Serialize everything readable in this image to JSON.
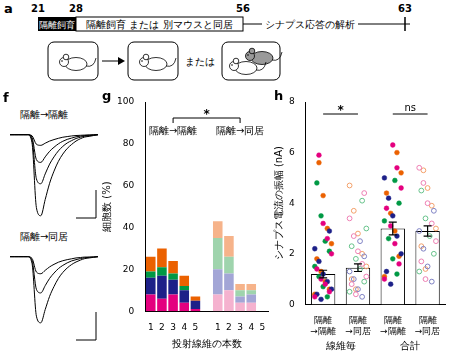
{
  "panel_labels": [
    "a",
    "f",
    "g",
    "h"
  ],
  "timeline": {
    "days": [
      21,
      28,
      56,
      63
    ],
    "isolation": "隔離飼育",
    "second_period": "隔離飼育 または 別マウスと同居",
    "analysis": "シナプス応答の解析",
    "or": "または"
  },
  "chart_data": [
    {
      "type": "line",
      "title": "隔離→隔離",
      "x": [
        0,
        1,
        2,
        3,
        4,
        5,
        6,
        7,
        8,
        9,
        10,
        11,
        12,
        13,
        14,
        15,
        16,
        17,
        18,
        19,
        20
      ],
      "xlim": [
        0,
        20
      ],
      "ylim": [
        -4,
        0.5
      ],
      "tick_labels": false,
      "grid": false,
      "series": [
        {
          "color": "#000000",
          "values": [
            0,
            0,
            0,
            0,
            0,
            -0.05,
            -0.45,
            -0.5,
            -0.4,
            -0.3,
            -0.23,
            -0.17,
            -0.12,
            -0.09,
            -0.06,
            -0.04,
            -0.03,
            -0.02,
            -0.01,
            -0.01,
            0
          ]
        },
        {
          "color": "#000000",
          "values": [
            0,
            0,
            0,
            0,
            0,
            -0.13,
            -1.17,
            -1.3,
            -1.04,
            -0.78,
            -0.59,
            -0.43,
            -0.31,
            -0.22,
            -0.16,
            -0.1,
            -0.07,
            -0.04,
            -0.03,
            -0.01,
            0
          ]
        },
        {
          "color": "#000000",
          "values": [
            0,
            0,
            0,
            0,
            0,
            -0.23,
            -2.07,
            -2.3,
            -1.84,
            -1.38,
            -1.04,
            -0.76,
            -0.55,
            -0.39,
            -0.28,
            -0.18,
            -0.12,
            -0.07,
            -0.05,
            -0.02,
            0
          ]
        },
        {
          "color": "#000000",
          "values": [
            0,
            0,
            0,
            0,
            0,
            -0.38,
            -3.42,
            -3.8,
            -3.04,
            -2.28,
            -1.71,
            -1.25,
            -0.91,
            -0.65,
            -0.46,
            -0.3,
            -0.19,
            -0.11,
            -0.08,
            -0.04,
            0
          ]
        }
      ]
    },
    {
      "type": "line",
      "title": "隔離→同居",
      "x": [
        0,
        1,
        2,
        3,
        4,
        5,
        6,
        7,
        8,
        9,
        10,
        11,
        12,
        13,
        14,
        15,
        16,
        17,
        18,
        19,
        20
      ],
      "xlim": [
        0,
        20
      ],
      "ylim": [
        -4,
        0.5
      ],
      "tick_labels": false,
      "grid": false,
      "series": [
        {
          "color": "#000000",
          "values": [
            0,
            0,
            0,
            0,
            0,
            -0.08,
            -0.72,
            -0.8,
            -0.64,
            -0.48,
            -0.36,
            -0.26,
            -0.19,
            -0.14,
            -0.1,
            -0.06,
            -0.04,
            -0.02,
            -0.02,
            -0.01,
            0
          ]
        },
        {
          "color": "#000000",
          "values": [
            0,
            0,
            0,
            0,
            0,
            -0.17,
            -1.53,
            -1.7,
            -1.36,
            -1.02,
            -0.77,
            -0.56,
            -0.41,
            -0.29,
            -0.2,
            -0.14,
            -0.09,
            -0.05,
            -0.03,
            -0.02,
            0
          ]
        },
        {
          "color": "#000000",
          "values": [
            0,
            0,
            0,
            0,
            0,
            -0.31,
            -2.79,
            -3.1,
            -2.48,
            -1.86,
            -1.4,
            -1.02,
            -0.74,
            -0.53,
            -0.37,
            -0.25,
            -0.16,
            -0.09,
            -0.06,
            -0.03,
            0
          ]
        }
      ]
    },
    {
      "type": "bar",
      "stacked": true,
      "grid": false,
      "xlabel": "投射線維の本数",
      "ylabel": "細胞数 (%)",
      "categories": [
        "1",
        "2",
        "3",
        "4",
        "5",
        null,
        "1",
        "2",
        "3",
        "4",
        "5"
      ],
      "group_labels": [
        "隔離→隔離",
        "隔離→同居"
      ],
      "brackets": [
        {
          "from": 2,
          "to": 8,
          "label": "*"
        }
      ],
      "ylim": [
        0,
        100
      ],
      "yticks": [
        0,
        20,
        40,
        60,
        80,
        100
      ],
      "series": [
        {
          "color": "#e4007f",
          "values": [
            8,
            6,
            8,
            4,
            1,
            null,
            null,
            null,
            null,
            null,
            null
          ]
        },
        {
          "color": "#1d2088",
          "values": [
            8,
            11,
            7,
            6,
            4,
            null,
            null,
            null,
            null,
            null,
            null
          ]
        },
        {
          "color": "#009944",
          "values": [
            3,
            4,
            3,
            2,
            0,
            null,
            null,
            null,
            null,
            null,
            null
          ]
        },
        {
          "color": "#eb6100",
          "values": [
            7,
            9,
            6,
            5,
            2,
            null,
            null,
            null,
            null,
            null,
            null
          ]
        },
        {
          "color": "#f5b2cf",
          "values": [
            null,
            null,
            null,
            null,
            null,
            null,
            8,
            10,
            4,
            4,
            0
          ]
        },
        {
          "color": "#a3a6d6",
          "values": [
            null,
            null,
            null,
            null,
            null,
            null,
            12,
            8,
            3,
            4,
            0
          ]
        },
        {
          "color": "#9fd4ad",
          "values": [
            null,
            null,
            null,
            null,
            null,
            null,
            15,
            8,
            3,
            2,
            0
          ]
        },
        {
          "color": "#f6b38a",
          "values": [
            null,
            null,
            null,
            null,
            null,
            null,
            8,
            10,
            3,
            3,
            0
          ]
        }
      ]
    },
    {
      "type": "bar",
      "grid": false,
      "ylabel": "シナプス電流の振幅 (nA)",
      "categories": [
        "隔離→隔離",
        "隔離→同居",
        "隔離→隔離",
        "隔離→同居"
      ],
      "group_labels": [
        "線維毎",
        "合計"
      ],
      "brackets": [
        {
          "from": 0,
          "to": 1,
          "label": "*"
        },
        {
          "from": 2,
          "to": 3,
          "label": "ns"
        }
      ],
      "ylim": [
        0,
        8
      ],
      "yticks": [
        0,
        2,
        4,
        6,
        8
      ],
      "series": [
        {
          "type": "bar",
          "color": "#ffffff",
          "values": [
            1.2,
            1.45,
            3.0,
            2.9
          ],
          "errors": [
            0.15,
            0.15,
            0.25,
            0.2
          ]
        },
        {
          "type": "scatter",
          "marker": "circle",
          "color": "#e4007f",
          "values": [
            [
              0.3,
              0.5,
              0.8,
              1.0,
              1.4,
              2.0,
              2.6,
              3.2,
              5.9
            ],
            [],
            [
              1.0,
              1.6,
              2.4,
              3.1,
              3.8,
              4.6,
              5.4,
              6.3
            ],
            []
          ]
        },
        {
          "type": "scatter",
          "marker": "circle",
          "color": "#1d2088",
          "values": [
            [
              0.2,
              0.4,
              0.6,
              0.9,
              1.2,
              1.7,
              2.2,
              2.9
            ],
            [],
            [
              0.8,
              1.3,
              2.0,
              2.7,
              3.5,
              4.2,
              5.0
            ],
            []
          ]
        },
        {
          "type": "scatter",
          "marker": "circle",
          "color": "#009944",
          "values": [
            [
              0.3,
              0.7,
              1.1,
              1.5,
              2.1,
              2.5,
              3.5,
              4.8
            ],
            [],
            [
              1.2,
              1.8,
              2.6,
              3.3,
              4.0,
              4.9
            ],
            []
          ]
        },
        {
          "type": "scatter",
          "marker": "circle",
          "color": "#eb6100",
          "values": [
            [
              0.4,
              0.6,
              0.9,
              1.3,
              1.8,
              2.4,
              3.0,
              4.3,
              5.6
            ],
            [],
            [
              1.1,
              1.9,
              2.9,
              3.6,
              4.4,
              5.2,
              6.0
            ],
            []
          ]
        },
        {
          "type": "scatter",
          "marker": "open_circle",
          "color": "#ee7fb3",
          "values": [
            [],
            [
              0.4,
              0.8,
              1.1,
              1.6,
              2.1,
              2.7,
              3.4,
              4.4
            ],
            [],
            [
              1.0,
              1.7,
              2.5,
              3.2,
              4.0,
              4.8,
              5.4
            ]
          ]
        },
        {
          "type": "scatter",
          "marker": "open_circle",
          "color": "#7f82c4",
          "values": [
            [],
            [
              0.3,
              0.6,
              1.0,
              1.3,
              1.9,
              2.5
            ],
            [],
            [
              0.9,
              1.5,
              2.2,
              2.9,
              3.7
            ]
          ]
        },
        {
          "type": "scatter",
          "marker": "open_circle",
          "color": "#66c28a",
          "values": [
            [],
            [
              0.5,
              0.9,
              1.4,
              1.8,
              2.3,
              3.0,
              4.1
            ],
            [],
            [
              1.3,
              2.0,
              2.7,
              3.4,
              4.5
            ]
          ]
        },
        {
          "type": "scatter",
          "marker": "open_circle",
          "color": "#f3a06a",
          "values": [
            [],
            [
              0.6,
              1.0,
              1.5,
              2.0,
              2.8,
              3.7,
              4.7
            ],
            [],
            [
              1.4,
              2.3,
              3.0,
              3.9,
              4.6,
              5.3
            ]
          ]
        }
      ]
    }
  ]
}
